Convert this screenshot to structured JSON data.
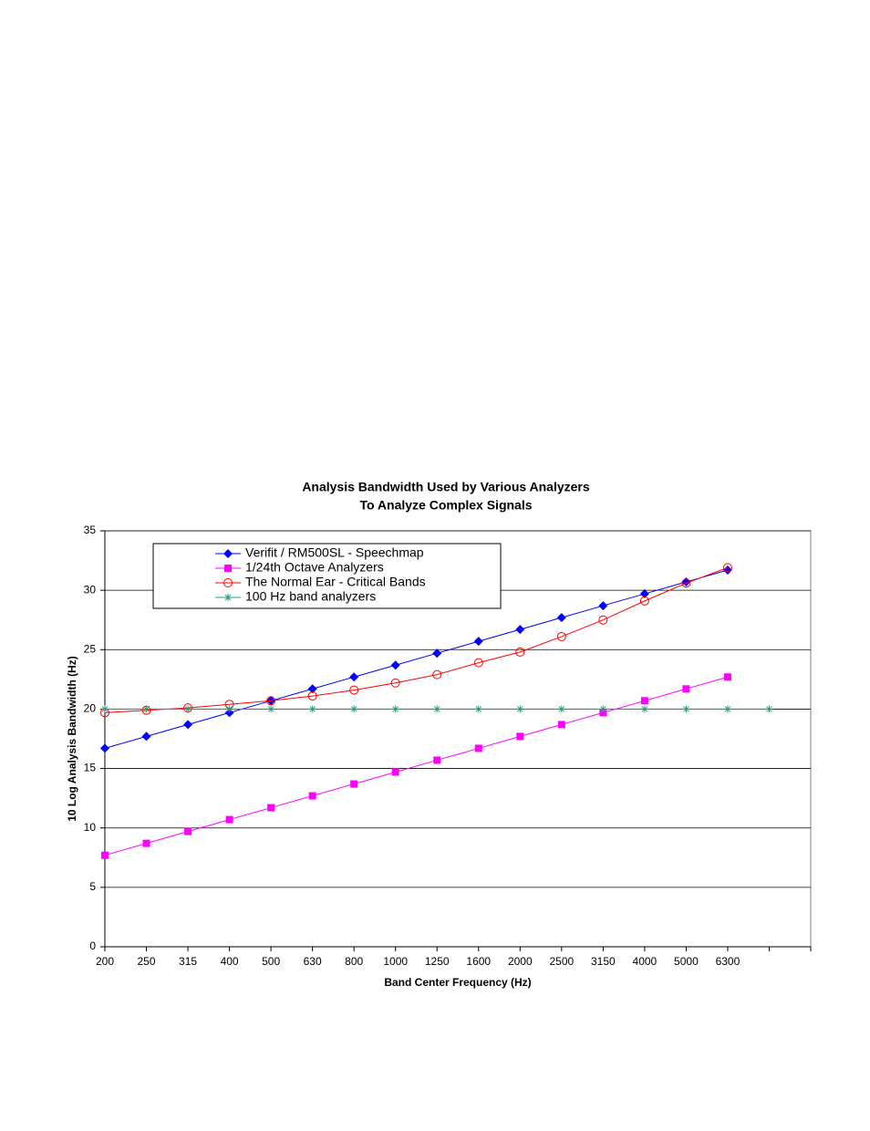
{
  "chart_data": {
    "type": "line",
    "title": [
      "Analysis Bandwidth Used by Various Analyzers",
      "To Analyze Complex Signals"
    ],
    "x_label": "Band Center Frequency (Hz)",
    "y_label": "10 Log Analysis Bandwidth (Hz)",
    "categories": [
      "200",
      "250",
      "315",
      "400",
      "500",
      "630",
      "800",
      "1000",
      "1250",
      "1600",
      "2000",
      "2500",
      "3150",
      "4000",
      "5000",
      "6300",
      null
    ],
    "ylim": [
      0,
      35
    ],
    "yticks": [
      0,
      5,
      10,
      15,
      20,
      25,
      30,
      35
    ],
    "grid": true,
    "legend": "top-left",
    "series": [
      {
        "name": "Verifit / RM500SL - Speechmap",
        "color": "#0000ff",
        "marker": "diamond",
        "values": [
          16.7,
          17.7,
          18.7,
          19.7,
          20.7,
          21.7,
          22.7,
          23.7,
          24.7,
          25.7,
          26.7,
          27.7,
          28.7,
          29.7,
          30.7,
          31.7,
          null
        ]
      },
      {
        "name": "1/24th Octave Analyzers",
        "color": "#ff00ff",
        "marker": "square",
        "values": [
          7.7,
          8.7,
          9.7,
          10.7,
          11.7,
          12.7,
          13.7,
          14.7,
          15.7,
          16.7,
          17.7,
          18.7,
          19.7,
          20.7,
          21.7,
          22.7,
          null
        ]
      },
      {
        "name": "The Normal Ear - Critical Bands",
        "color": "#ff0000",
        "marker": "circle",
        "values": [
          19.7,
          19.9,
          20.1,
          20.4,
          20.7,
          21.1,
          21.6,
          22.2,
          22.9,
          23.9,
          24.8,
          26.1,
          27.5,
          29.1,
          30.6,
          31.9,
          null
        ]
      },
      {
        "name": "100 Hz band analyzers",
        "color": "#20a080",
        "marker": "asterisk",
        "values": [
          20,
          20,
          20,
          20,
          20,
          20,
          20,
          20,
          20,
          20,
          20,
          20,
          20,
          20,
          20,
          20,
          20
        ]
      }
    ]
  }
}
